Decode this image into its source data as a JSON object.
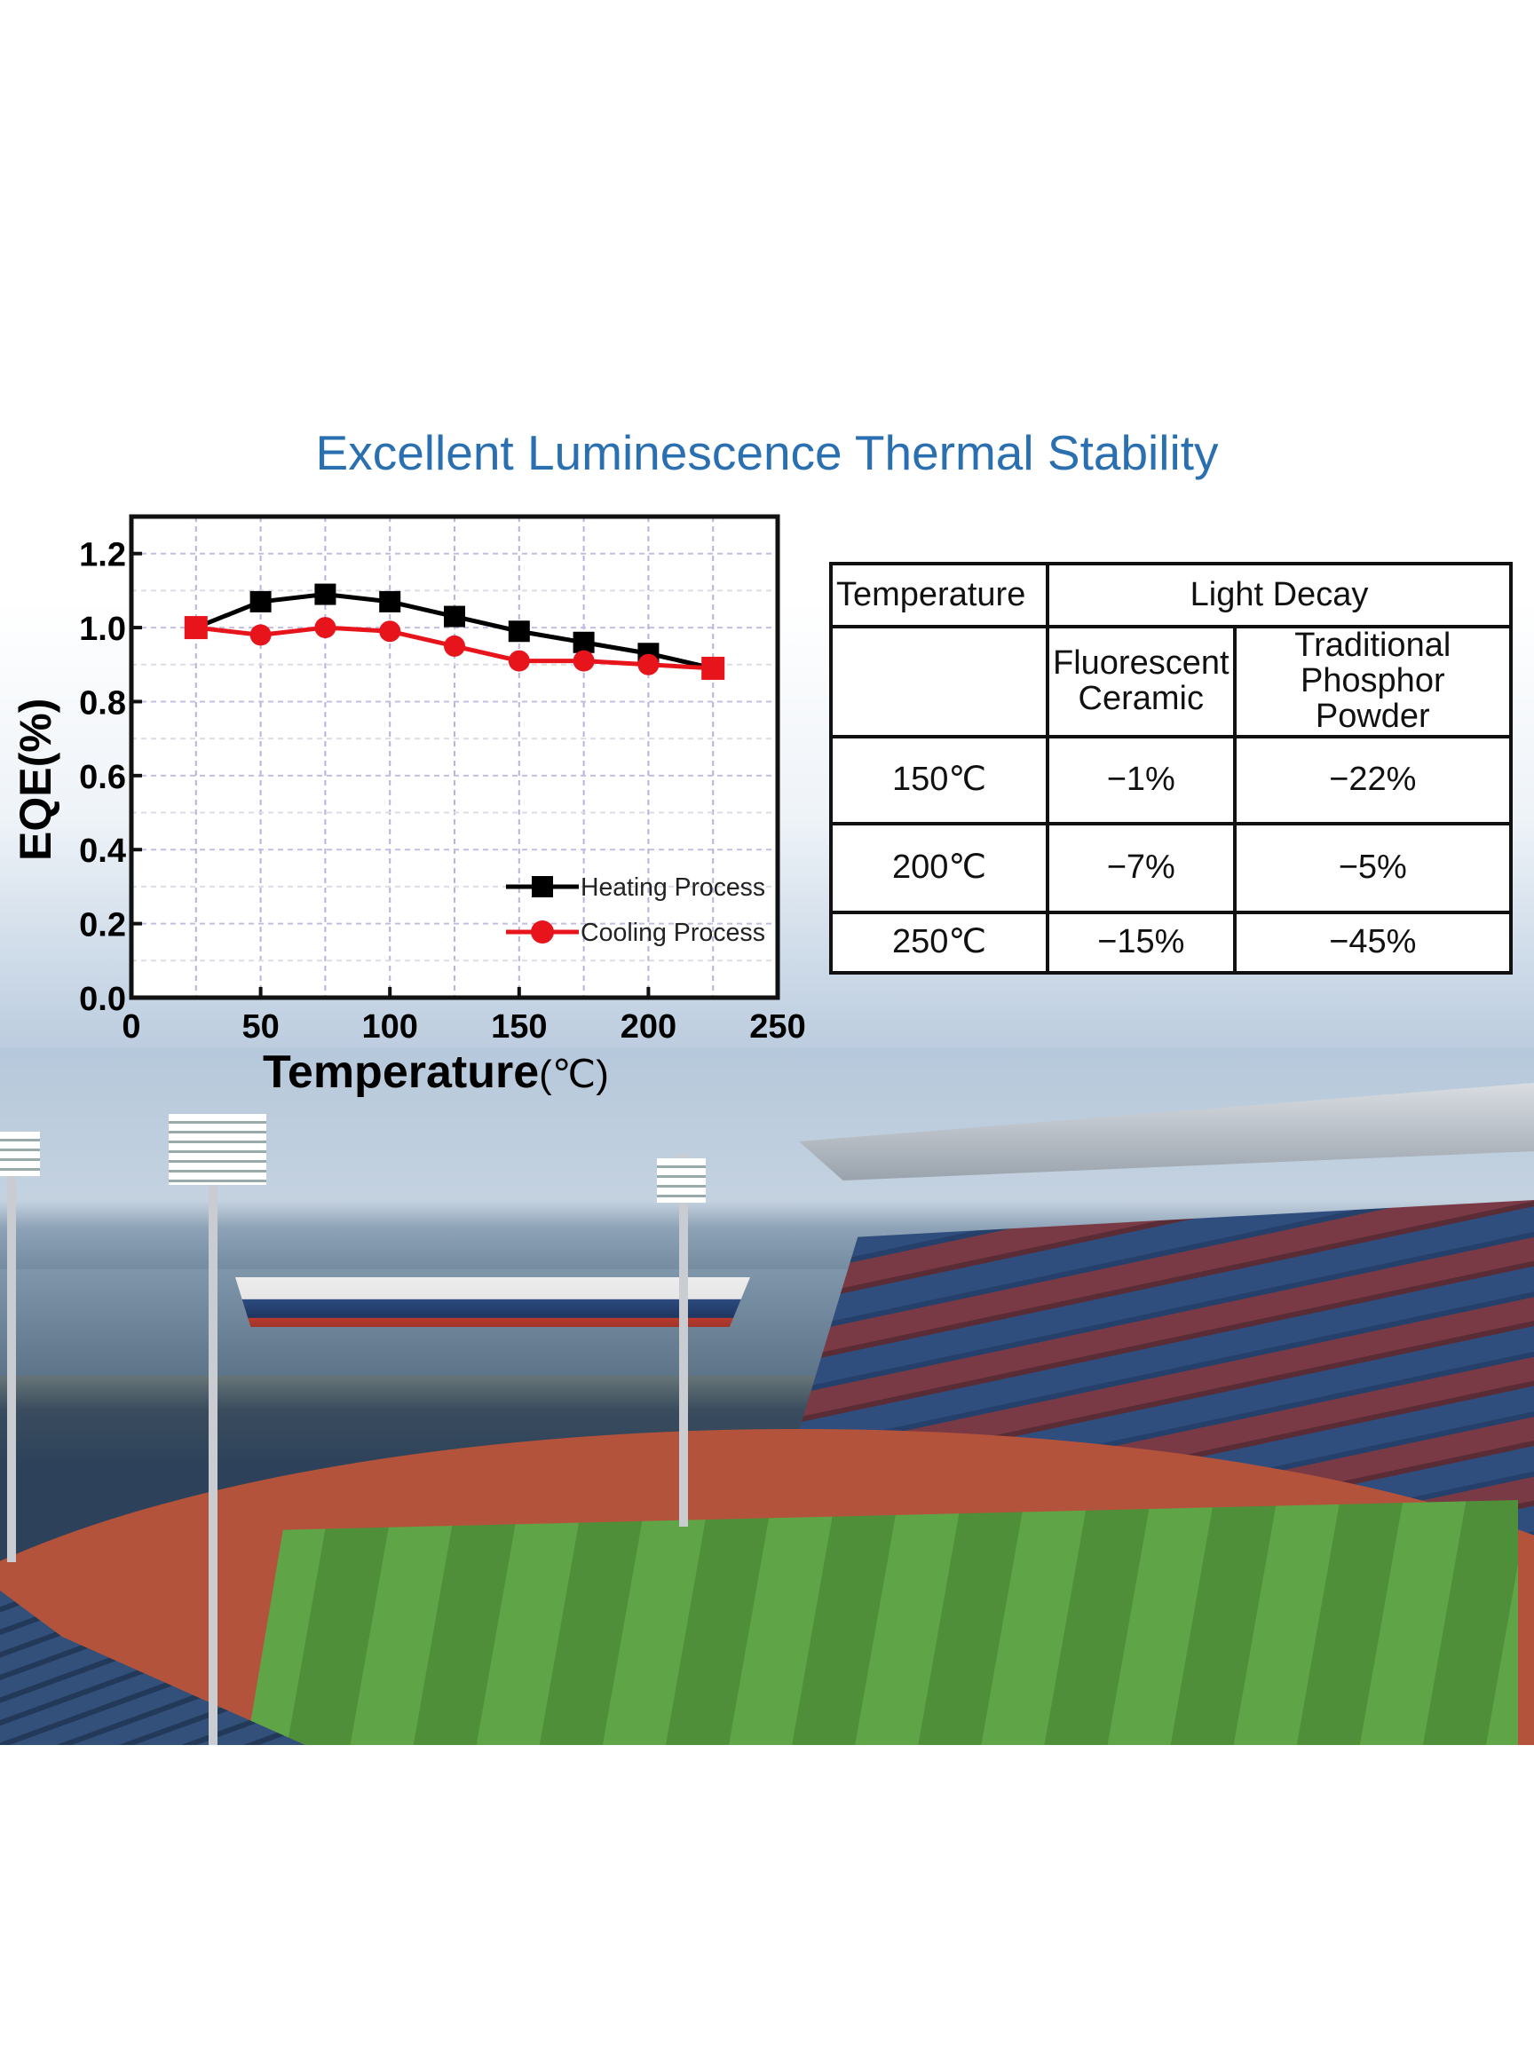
{
  "title": "Excellent Luminescence Thermal Stability",
  "chart_data": {
    "type": "line",
    "title": "",
    "xlabel": "Temperature",
    "xlabel_unit": "(℃)",
    "ylabel": "EQE(%)",
    "xlim": [
      0,
      250
    ],
    "ylim": [
      0,
      1.3
    ],
    "x_ticks": [
      "0",
      "50",
      "100",
      "150",
      "200",
      "250"
    ],
    "y_ticks": [
      "0.0",
      "0.2",
      "0.4",
      "0.6",
      "0.8",
      "1.0",
      "1.2"
    ],
    "grid": true,
    "legend_position": "bottom-right",
    "x": [
      25,
      50,
      75,
      100,
      125,
      150,
      175,
      200,
      225
    ],
    "series": [
      {
        "name": "Heating Process",
        "color": "#000000",
        "marker": "square",
        "values": [
          1.0,
          1.07,
          1.09,
          1.07,
          1.03,
          0.99,
          0.96,
          0.93,
          0.89
        ]
      },
      {
        "name": "Cooling Process",
        "color": "#e8141b",
        "marker": "circle",
        "values": [
          1.0,
          0.98,
          1.0,
          0.99,
          0.95,
          0.91,
          0.91,
          0.9,
          0.89
        ]
      }
    ]
  },
  "table": {
    "header_temperature": "Temperature",
    "header_light_decay": "Light Decay",
    "sub_col1": [
      "Fluorescent",
      "Ceramic"
    ],
    "sub_col2": [
      "Traditional",
      "Phosphor Powder"
    ],
    "rows": [
      {
        "temp": "150℃",
        "ceramic": "−1%",
        "powder": "−22%"
      },
      {
        "temp": "200℃",
        "ceramic": "−7%",
        "powder": "−5%"
      },
      {
        "temp": "250℃",
        "ceramic": "−15%",
        "powder": "−45%"
      }
    ]
  }
}
